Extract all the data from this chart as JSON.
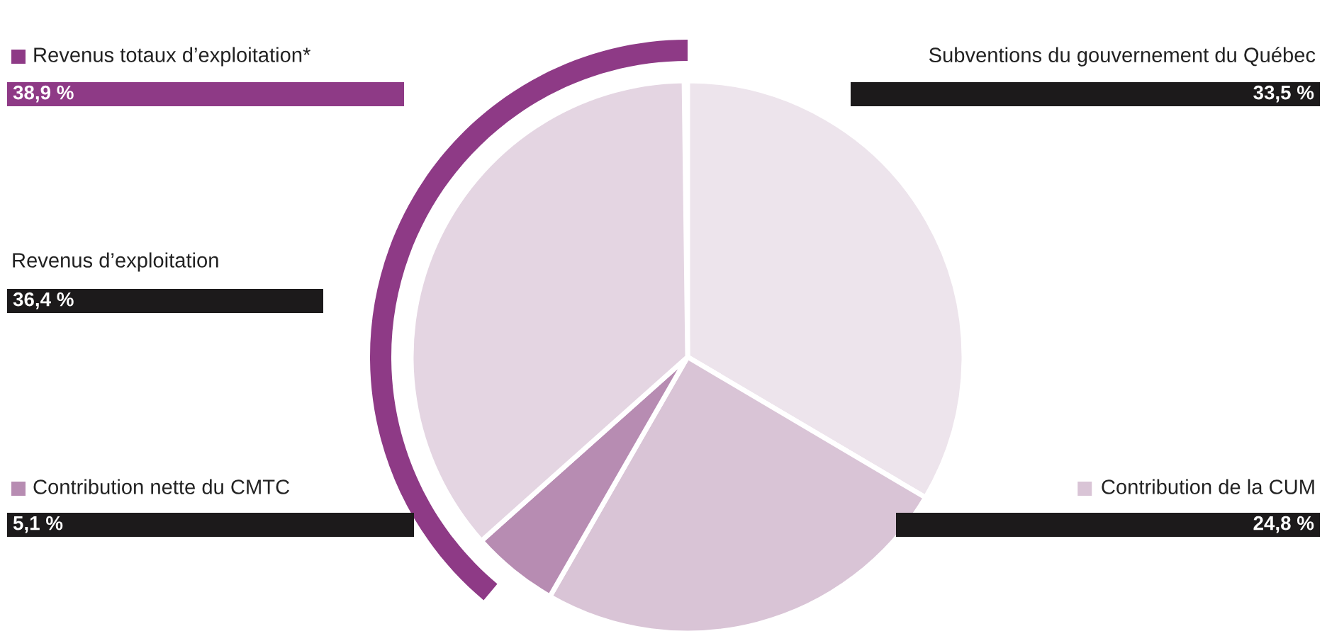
{
  "chart_data": {
    "type": "pie",
    "legend": "left",
    "categories": [
      "Subventions du gouvernement du Québec",
      "Contribution de la CUM",
      "Contribution nette du CMTC",
      "Revenus d’exploitation",
      "Revenus totaux d’exploitation*"
    ],
    "series": [
      {
        "values": [
          33.5,
          24.8,
          5.1,
          36.4,
          null
        ],
        "colors": [
          "#ede4ec",
          "#d9c4d6",
          "#b78cb2",
          "#e4d5e2",
          null
        ],
        "value_labels": [
          "33,5 %",
          "24,8 %",
          "5,1 %",
          "36,4 %",
          null
        ]
      },
      {
        "type": "donut",
        "values": [
          null,
          null,
          null,
          null,
          38.9
        ],
        "colors": [
          null,
          null,
          null,
          null,
          "#8e3a86"
        ],
        "value_labels": [
          null,
          null,
          null,
          null,
          "38,9 %"
        ]
      }
    ]
  }
}
